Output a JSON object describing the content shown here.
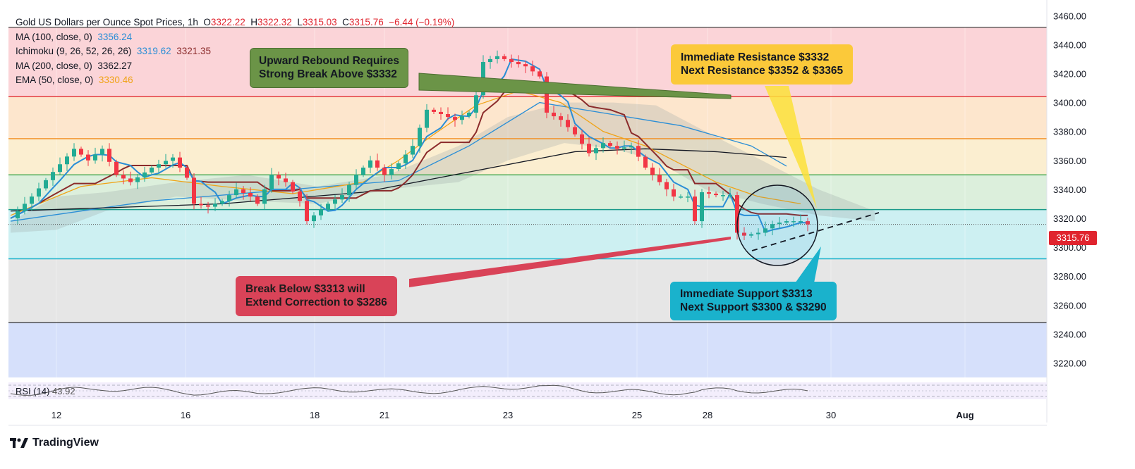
{
  "legend": {
    "title": "Gold US Dollars per Ounce Spot Prices, 1h",
    "open_label": "O",
    "open": "3322.22",
    "high_label": "H",
    "high": "3322.32",
    "low_label": "L",
    "low": "3315.03",
    "close_label": "C",
    "close": "3315.76",
    "change": "−6.44 (−0.19%)",
    "ma100_label": "MA (100, close, 0)",
    "ma100_value": "3356.24",
    "ichimoku_label": "Ichimoku (9, 26, 52, 26, 26)",
    "ichimoku_v1": "3319.62",
    "ichimoku_v2": "3321.35",
    "ma200_label": "MA (200, close, 0)",
    "ma200_value": "3362.27",
    "ema50_label": "EMA (50, close, 0)",
    "ema50_value": "3330.46"
  },
  "annotations": {
    "green": "Upward Rebound Requires\nStrong Break Above $3332",
    "yellow": "Immediate Resistance $3332\nNext Resistance $3352 & $3365",
    "red": "Break Below $3313 will\nExtend Correction to $3286",
    "cyan": "Immediate Support $3313\nNext Support $3300 & $3290"
  },
  "current_price_tag": "3315.76",
  "rsi_label": "RSI (14)",
  "rsi_value": "43.92",
  "branding": "TradingView",
  "colors": {
    "up": "#22ab94",
    "down": "#f23645",
    "ma100": "#2a8ed6",
    "ma200": "#131722",
    "ema50": "#f0a316",
    "tenkan": "#2a8ed6",
    "kijun": "#8b2b2b"
  },
  "chart_data": {
    "type": "line",
    "title": "Gold US Dollars per Ounce Spot Prices, 1h",
    "y_axis": {
      "ticks": [
        3220,
        3240,
        3260,
        3280,
        3300,
        3320,
        3340,
        3360,
        3380,
        3400,
        3420,
        3440,
        3460
      ],
      "ylim": [
        3210,
        3465
      ]
    },
    "x_axis": {
      "ticks": [
        "12",
        "16",
        "18",
        "21",
        "23",
        "25",
        "28",
        "30",
        "Aug"
      ]
    },
    "horizontal_levels": [
      {
        "price": 3452,
        "color": "#555555"
      },
      {
        "price": 3404,
        "color": "#e23636"
      },
      {
        "price": 3375,
        "color": "#f28b1d"
      },
      {
        "price": 3350,
        "color": "#3aa34a"
      },
      {
        "price": 3326,
        "color": "#1a9a8a"
      },
      {
        "price": 3292,
        "color": "#1ab2cc"
      },
      {
        "price": 3248,
        "color": "#444444"
      }
    ],
    "zones": [
      {
        "from": 3404,
        "to": 3452,
        "color": "#fbd4d8"
      },
      {
        "from": 3375,
        "to": 3404,
        "color": "#fde6cd"
      },
      {
        "from": 3350,
        "to": 3375,
        "color": "#fbeed0"
      },
      {
        "from": 3326,
        "to": 3350,
        "color": "#dcefdc"
      },
      {
        "from": 3292,
        "to": 3326,
        "color": "#cdf0f2"
      },
      {
        "from": 3248,
        "to": 3292,
        "color": "#e6e6e6"
      },
      {
        "from": 3210,
        "to": 3248,
        "color": "#d6e0fb"
      }
    ],
    "series": [
      {
        "name": "Price",
        "points": [
          [
            0,
            3320
          ],
          [
            3,
            3335
          ],
          [
            6,
            3352
          ],
          [
            9,
            3368
          ],
          [
            11,
            3360
          ],
          [
            13,
            3368
          ],
          [
            15,
            3350
          ],
          [
            17,
            3345
          ],
          [
            20,
            3355
          ],
          [
            23,
            3362
          ],
          [
            25,
            3348
          ],
          [
            26,
            3330
          ],
          [
            28,
            3328
          ],
          [
            30,
            3332
          ],
          [
            32,
            3340
          ],
          [
            34,
            3335
          ],
          [
            35,
            3330
          ],
          [
            37,
            3350
          ],
          [
            39,
            3345
          ],
          [
            41,
            3332
          ],
          [
            42,
            3318
          ],
          [
            43,
            3322
          ],
          [
            45,
            3330
          ],
          [
            47,
            3336
          ],
          [
            49,
            3350
          ],
          [
            51,
            3360
          ],
          [
            53,
            3350
          ],
          [
            55,
            3358
          ],
          [
            57,
            3370
          ],
          [
            59,
            3395
          ],
          [
            61,
            3392
          ],
          [
            63,
            3388
          ],
          [
            65,
            3393
          ],
          [
            66,
            3405
          ],
          [
            67,
            3428
          ],
          [
            69,
            3432
          ],
          [
            71,
            3428
          ],
          [
            73,
            3425
          ],
          [
            75,
            3418
          ],
          [
            76,
            3393
          ],
          [
            78,
            3388
          ],
          [
            80,
            3378
          ],
          [
            82,
            3365
          ],
          [
            84,
            3372
          ],
          [
            86,
            3368
          ],
          [
            88,
            3370
          ],
          [
            90,
            3355
          ],
          [
            92,
            3345
          ],
          [
            94,
            3335
          ],
          [
            96,
            3335
          ],
          [
            97,
            3318
          ],
          [
            98,
            3338
          ],
          [
            100,
            3336
          ],
          [
            102,
            3336
          ],
          [
            103,
            3310
          ],
          [
            104,
            3308
          ],
          [
            106,
            3310
          ],
          [
            108,
            3316
          ],
          [
            110,
            3318
          ],
          [
            112,
            3318
          ],
          [
            113,
            3315.76
          ]
        ]
      },
      {
        "name": "MA (100, close, 0)",
        "points": [
          [
            0,
            3318
          ],
          [
            20,
            3332
          ],
          [
            40,
            3340
          ],
          [
            55,
            3346
          ],
          [
            65,
            3370
          ],
          [
            75,
            3400
          ],
          [
            85,
            3392
          ],
          [
            95,
            3384
          ],
          [
            105,
            3370
          ],
          [
            110,
            3356
          ]
        ]
      },
      {
        "name": "MA (200, close, 0)",
        "points": [
          [
            0,
            3325
          ],
          [
            30,
            3330
          ],
          [
            50,
            3338
          ],
          [
            65,
            3352
          ],
          [
            80,
            3366
          ],
          [
            90,
            3368
          ],
          [
            100,
            3366
          ],
          [
            110,
            3362
          ]
        ]
      },
      {
        "name": "EMA (50, close, 0)",
        "points": [
          [
            0,
            3322
          ],
          [
            10,
            3342
          ],
          [
            20,
            3348
          ],
          [
            30,
            3342
          ],
          [
            40,
            3337
          ],
          [
            50,
            3345
          ],
          [
            55,
            3360
          ],
          [
            60,
            3378
          ],
          [
            66,
            3398
          ],
          [
            72,
            3408
          ],
          [
            78,
            3400
          ],
          [
            84,
            3380
          ],
          [
            90,
            3370
          ],
          [
            96,
            3355
          ],
          [
            100,
            3345
          ],
          [
            106,
            3335
          ],
          [
            112,
            3330
          ]
        ]
      }
    ],
    "rsi": {
      "label": "RSI (14)",
      "value": 43.92
    }
  }
}
